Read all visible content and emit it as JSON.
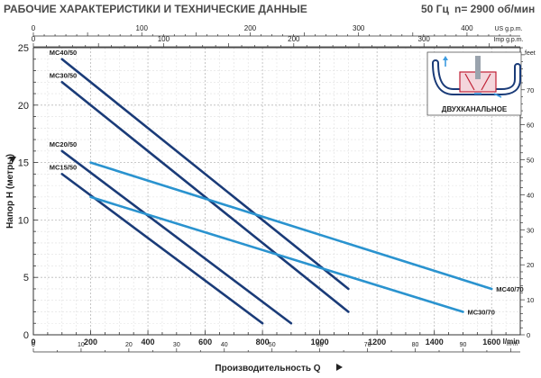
{
  "header": {
    "title": "РАБОЧИЕ ХАРАКТЕРИСТИКИ И ТЕХНИЧЕСКИЕ ДАННЫЕ",
    "frequency": "50 Гц",
    "speed": "n= 2900 об/мин"
  },
  "chart_data": {
    "type": "line",
    "title": "",
    "xlabel": "Производительность Q",
    "ylabel": "Напор H (метры)",
    "xlim": [
      0,
      1700
    ],
    "ylim": [
      0,
      25
    ],
    "grid": true,
    "x_unit": "l/min",
    "x_ticks": [
      0,
      200,
      400,
      600,
      800,
      1000,
      1200,
      1400,
      1600
    ],
    "y_ticks": [
      0,
      5,
      10,
      15,
      20,
      25
    ],
    "secondary_axes": {
      "us_gpm": {
        "label": "US g.p.m.",
        "ticks": [
          0,
          100,
          200,
          300,
          400
        ]
      },
      "imp_gpm": {
        "label": "Imp g.p.m.",
        "ticks": [
          0,
          100,
          200,
          300
        ]
      },
      "feet": {
        "label": "feet",
        "ticks": [
          0,
          10,
          20,
          30,
          40,
          50,
          60,
          70
        ]
      },
      "m3h": {
        "label": "m³/h",
        "ticks": [
          0,
          10,
          20,
          30,
          40,
          50,
          60,
          70,
          80,
          90
        ]
      }
    },
    "series": [
      {
        "name": "MC40/50",
        "x": [
          100,
          1100
        ],
        "y": [
          24,
          4
        ],
        "color": "#1a3b78"
      },
      {
        "name": "MC30/50",
        "x": [
          100,
          1100
        ],
        "y": [
          22,
          2
        ],
        "color": "#1a3b78"
      },
      {
        "name": "MC20/50",
        "x": [
          100,
          900
        ],
        "y": [
          16,
          1
        ],
        "color": "#1a3b78"
      },
      {
        "name": "MC15/50",
        "x": [
          100,
          800
        ],
        "y": [
          14,
          1
        ],
        "color": "#1a3b78"
      },
      {
        "name": "MC40/70",
        "x": [
          200,
          1600
        ],
        "y": [
          15,
          4
        ],
        "color": "#2a93cf"
      },
      {
        "name": "MC30/70",
        "x": [
          200,
          1500
        ],
        "y": [
          12,
          2
        ],
        "color": "#2a93cf"
      }
    ]
  },
  "inset": {
    "caption": "ДВУХКАНАЛЬНОЕ",
    "icon": "two-channel-impeller-icon"
  }
}
